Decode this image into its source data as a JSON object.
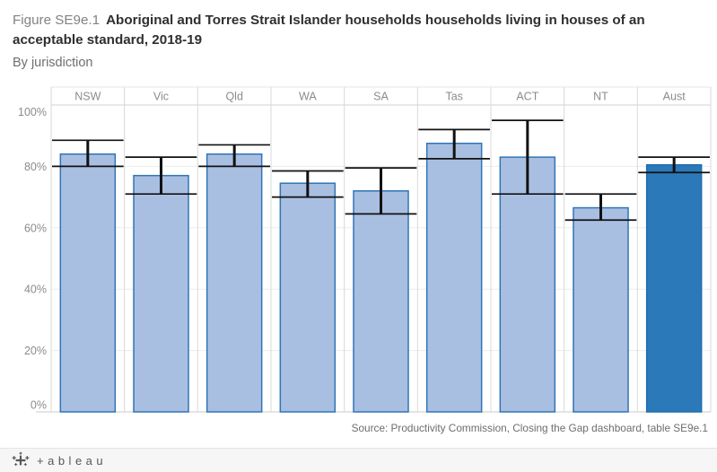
{
  "title": {
    "figure_label": "Figure SE9e.1",
    "title_bold": "Aboriginal and Torres Strait Islander households households living in houses of an acceptable standard, 2018-19",
    "subtitle": "By jurisdiction"
  },
  "source": "Source: Productivity Commission, Closing the Gap dashboard, table SE9e.1",
  "footer": {
    "brand": "+ableau"
  },
  "colors": {
    "bar_fill": "#a9bfe2",
    "bar_stroke": "#2f75b5",
    "highlight_fill": "#2b79b9",
    "highlight_stroke": "#1f6cae",
    "error_bar": "#111111",
    "gridline": "#ececec",
    "divider": "#d9d9d9",
    "axis_line": "#c9c9c9",
    "header_border_top": "#e4e4e4",
    "header_border_bottom": "#d2d2d2",
    "tick_label": "#8b8b8b"
  },
  "chart_data": {
    "type": "bar",
    "title": "Aboriginal and Torres Strait Islander households households living in houses of an acceptable standard, 2018-19",
    "subtitle": "By jurisdiction",
    "categories": [
      "NSW",
      "Vic",
      "Qld",
      "WA",
      "SA",
      "Tas",
      "ACT",
      "NT",
      "Aust"
    ],
    "values": [
      84,
      77,
      84,
      74.5,
      72,
      87.5,
      83,
      66.5,
      80.5
    ],
    "error_low": [
      80,
      71,
      80,
      70,
      64.5,
      82.5,
      71,
      62.5,
      78
    ],
    "error_high": [
      88.5,
      83,
      87,
      78.5,
      79.5,
      92,
      95,
      71,
      83
    ],
    "highlight_category": "Aust",
    "xlabel": "",
    "ylabel": "",
    "ylim": [
      0,
      100
    ],
    "yticks": [
      0,
      20,
      40,
      60,
      80,
      100
    ],
    "ytick_format": "percent",
    "grid": true,
    "legend": false
  }
}
